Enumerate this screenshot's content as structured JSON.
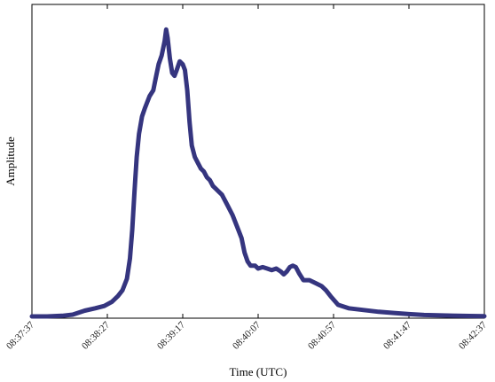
{
  "chart_data": {
    "type": "line",
    "title": "",
    "xlabel": "Time (UTC)",
    "ylabel": "Amplitude",
    "x_tick_labels": [
      "08:37:37",
      "08:38:27",
      "08:39:17",
      "08:40:07",
      "08:40:57",
      "08:41:47",
      "08:42:37"
    ],
    "x_tick_seconds": [
      0,
      50,
      100,
      150,
      200,
      250,
      300
    ],
    "x_range_seconds": [
      0,
      300
    ],
    "y_range": [
      0,
      1
    ],
    "y_ticks_shown": false,
    "grid": false,
    "line_color": "#35357f",
    "series": [
      {
        "name": "",
        "points": [
          [
            0,
            0.0
          ],
          [
            10,
            0.0
          ],
          [
            20,
            0.002
          ],
          [
            27,
            0.006
          ],
          [
            35,
            0.02
          ],
          [
            42,
            0.028
          ],
          [
            48,
            0.036
          ],
          [
            53,
            0.05
          ],
          [
            57,
            0.07
          ],
          [
            60,
            0.09
          ],
          [
            63,
            0.13
          ],
          [
            65,
            0.2
          ],
          [
            66.5,
            0.3
          ],
          [
            68,
            0.43
          ],
          [
            69.5,
            0.55
          ],
          [
            71,
            0.63
          ],
          [
            73,
            0.69
          ],
          [
            75,
            0.72
          ],
          [
            78,
            0.76
          ],
          [
            80.5,
            0.78
          ],
          [
            82,
            0.82
          ],
          [
            84,
            0.87
          ],
          [
            86,
            0.9
          ],
          [
            88,
            0.95
          ],
          [
            89,
            0.99
          ],
          [
            90,
            0.96
          ],
          [
            91.5,
            0.89
          ],
          [
            93,
            0.84
          ],
          [
            94.5,
            0.83
          ],
          [
            96,
            0.85
          ],
          [
            98,
            0.88
          ],
          [
            100,
            0.87
          ],
          [
            101.5,
            0.85
          ],
          [
            103,
            0.78
          ],
          [
            104.5,
            0.67
          ],
          [
            106,
            0.59
          ],
          [
            108,
            0.55
          ],
          [
            110,
            0.53
          ],
          [
            112,
            0.51
          ],
          [
            114,
            0.5
          ],
          [
            116,
            0.48
          ],
          [
            118,
            0.47
          ],
          [
            120,
            0.45
          ],
          [
            122,
            0.44
          ],
          [
            124,
            0.43
          ],
          [
            126,
            0.42
          ],
          [
            128,
            0.4
          ],
          [
            130,
            0.38
          ],
          [
            133,
            0.35
          ],
          [
            136,
            0.31
          ],
          [
            139,
            0.27
          ],
          [
            141,
            0.22
          ],
          [
            143,
            0.19
          ],
          [
            145,
            0.175
          ],
          [
            148,
            0.175
          ],
          [
            150,
            0.165
          ],
          [
            153,
            0.17
          ],
          [
            156,
            0.165
          ],
          [
            159,
            0.16
          ],
          [
            162,
            0.165
          ],
          [
            165,
            0.155
          ],
          [
            167,
            0.145
          ],
          [
            169,
            0.155
          ],
          [
            171,
            0.17
          ],
          [
            173,
            0.175
          ],
          [
            175,
            0.17
          ],
          [
            177,
            0.15
          ],
          [
            180,
            0.125
          ],
          [
            184,
            0.125
          ],
          [
            188,
            0.115
          ],
          [
            192,
            0.105
          ],
          [
            195,
            0.09
          ],
          [
            198,
            0.07
          ],
          [
            203,
            0.04
          ],
          [
            210,
            0.028
          ],
          [
            220,
            0.022
          ],
          [
            230,
            0.016
          ],
          [
            240,
            0.012
          ],
          [
            250,
            0.008
          ],
          [
            260,
            0.005
          ],
          [
            275,
            0.003
          ],
          [
            290,
            0.0015
          ],
          [
            300,
            0.001
          ]
        ]
      }
    ]
  }
}
